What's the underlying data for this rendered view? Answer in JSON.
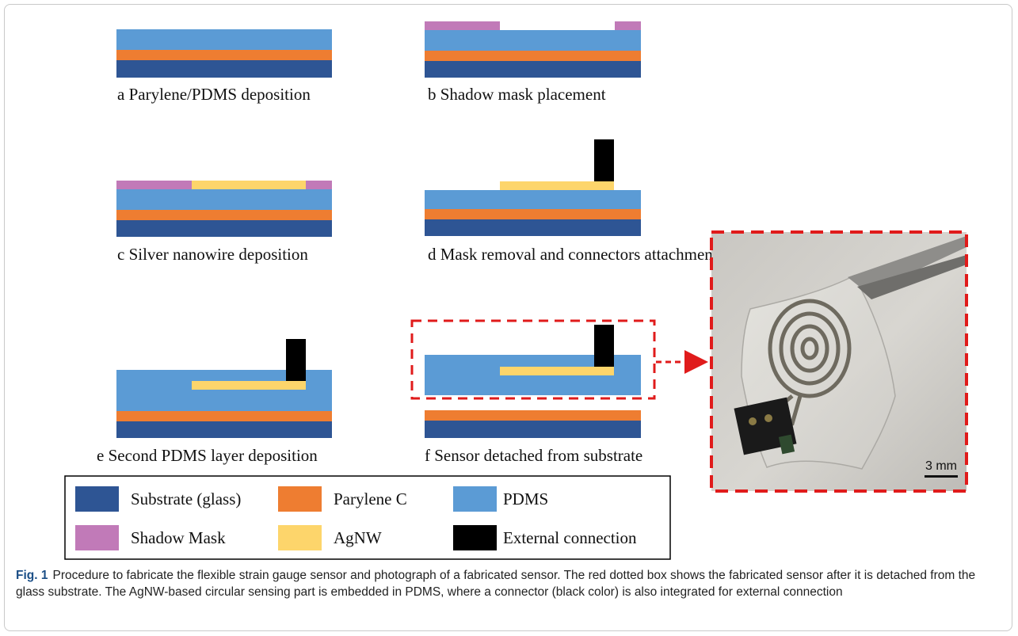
{
  "panels": {
    "a": "a  Parylene/PDMS deposition",
    "b": "b  Shadow mask placement",
    "c": "c  Silver nanowire deposition",
    "d": "d  Mask removal and connectors attachment",
    "e": "e  Second PDMS layer deposition",
    "f": "f  Sensor detached from substrate"
  },
  "legend": [
    {
      "label": "Substrate (glass)",
      "color": "#2e5594"
    },
    {
      "label": "Parylene C",
      "color": "#ee7d31"
    },
    {
      "label": "PDMS",
      "color": "#5b9bd5"
    },
    {
      "label": "Shadow Mask",
      "color": "#c17ab8"
    },
    {
      "label": "AgNW",
      "color": "#fdd56b"
    },
    {
      "label": "External connection",
      "color": "#000000"
    }
  ],
  "photo": {
    "scale_label": "3 mm",
    "highlight_color": "#e01b1b"
  },
  "caption": {
    "label": "Fig. 1",
    "text": "Procedure to fabricate the flexible strain gauge sensor and photograph of a fabricated sensor. The red dotted box shows the fabricated sensor after it is detached from the glass substrate. The AgNW-based circular sensing part is embedded in PDMS, where a connector (black color) is also integrated for external connection"
  }
}
